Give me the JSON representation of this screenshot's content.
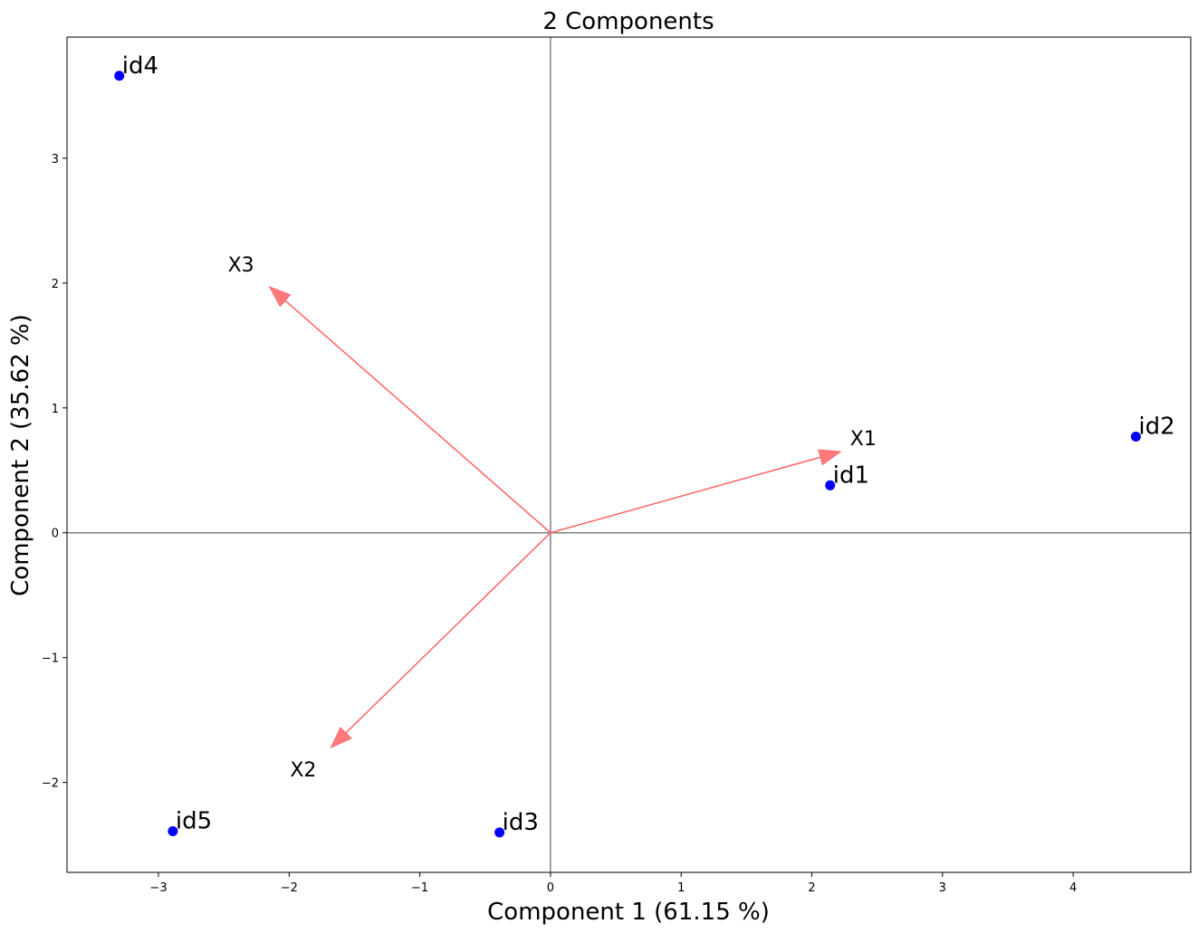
{
  "chart_data": {
    "type": "scatter",
    "title": "2 Components",
    "xlabel": "Component 1 (61.15 %)",
    "ylabel": "Component 2 (35.62 %)",
    "xlim": [
      -3.7,
      4.9
    ],
    "ylim": [
      -2.72,
      3.97
    ],
    "x_ticks": [
      -3,
      -2,
      -1,
      0,
      1,
      2,
      3,
      4
    ],
    "y_ticks": [
      -2,
      -1,
      0,
      1,
      2,
      3
    ],
    "grid": false,
    "zero_lines": true,
    "point_color": "#0000ff",
    "vector_color": "#ff6b6b",
    "zero_line_color": "#808080",
    "points": [
      {
        "label": "id1",
        "x": 2.14,
        "y": 0.38
      },
      {
        "label": "id2",
        "x": 4.48,
        "y": 0.77
      },
      {
        "label": "id3",
        "x": -0.39,
        "y": -2.4
      },
      {
        "label": "id4",
        "x": -3.3,
        "y": 3.66
      },
      {
        "label": "id5",
        "x": -2.89,
        "y": -2.39
      }
    ],
    "vectors": [
      {
        "label": "X1",
        "x": 2.22,
        "y": 0.65
      },
      {
        "label": "X2",
        "x": -1.68,
        "y": -1.72
      },
      {
        "label": "X3",
        "x": -2.15,
        "y": 1.97
      }
    ]
  }
}
